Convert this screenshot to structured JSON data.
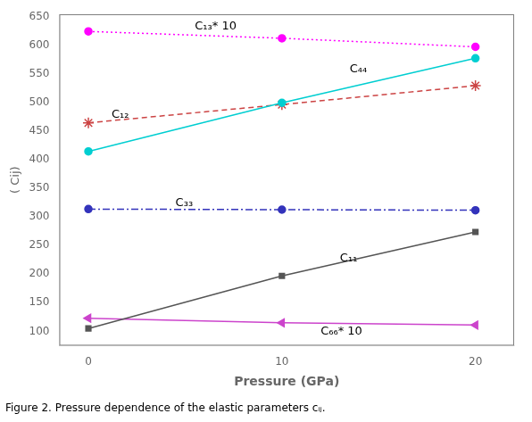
{
  "chart_data": {
    "type": "line",
    "subtitle": "Figure 2. Pressure dependence of the elastic parameters cᵢⱼ.",
    "xlabel": "Pressure (GPa)",
    "ylabel": "( Cij)",
    "x": [
      0,
      10,
      20
    ],
    "series": [
      {
        "name": "C₁₃* 10",
        "color": "#FF00FF",
        "values": [
          625,
          613,
          598
        ],
        "marker": "circle",
        "line_style": "dotted"
      },
      {
        "name": "C₄₄",
        "color": "#00CED1",
        "values": [
          415,
          500,
          578
        ],
        "marker": "circle",
        "line_style": "solid"
      },
      {
        "name": "C₁₂",
        "color": "#CC4444",
        "values": [
          465,
          497,
          530
        ],
        "marker": "star",
        "line_style": "dashed"
      },
      {
        "name": "C₃₃",
        "color": "#3333BB",
        "values": [
          314,
          313,
          312
        ],
        "marker": "circle",
        "line_style": "dashdot"
      },
      {
        "name": "C₁₁",
        "color": "#555555",
        "values": [
          105,
          197,
          274
        ],
        "marker": "square",
        "line_style": "solid"
      },
      {
        "name": "C₆₆* 10",
        "color": "#CC44CC",
        "values": [
          123,
          115,
          111
        ],
        "marker": "triangle-left",
        "line_style": "solid"
      }
    ],
    "xlim": [
      -1.5,
      22
    ],
    "ylim": [
      75,
      655
    ],
    "xticks": [
      0,
      10,
      20
    ],
    "yticks": [
      100,
      150,
      200,
      250,
      300,
      350,
      400,
      450,
      500,
      550,
      600,
      650
    ],
    "grid": false,
    "annotations": [
      {
        "text": "C₁₃* 10",
        "x": 5.5,
        "y": 628
      },
      {
        "text": "C₄₄",
        "x": 13.5,
        "y": 553
      },
      {
        "text": "C₁₂",
        "x": 1.2,
        "y": 474
      },
      {
        "text": "C₃₃",
        "x": 4.5,
        "y": 320
      },
      {
        "text": "C₁₁",
        "x": 13.0,
        "y": 222
      },
      {
        "text": "C₆₆* 10",
        "x": 12.0,
        "y": 94
      }
    ]
  }
}
